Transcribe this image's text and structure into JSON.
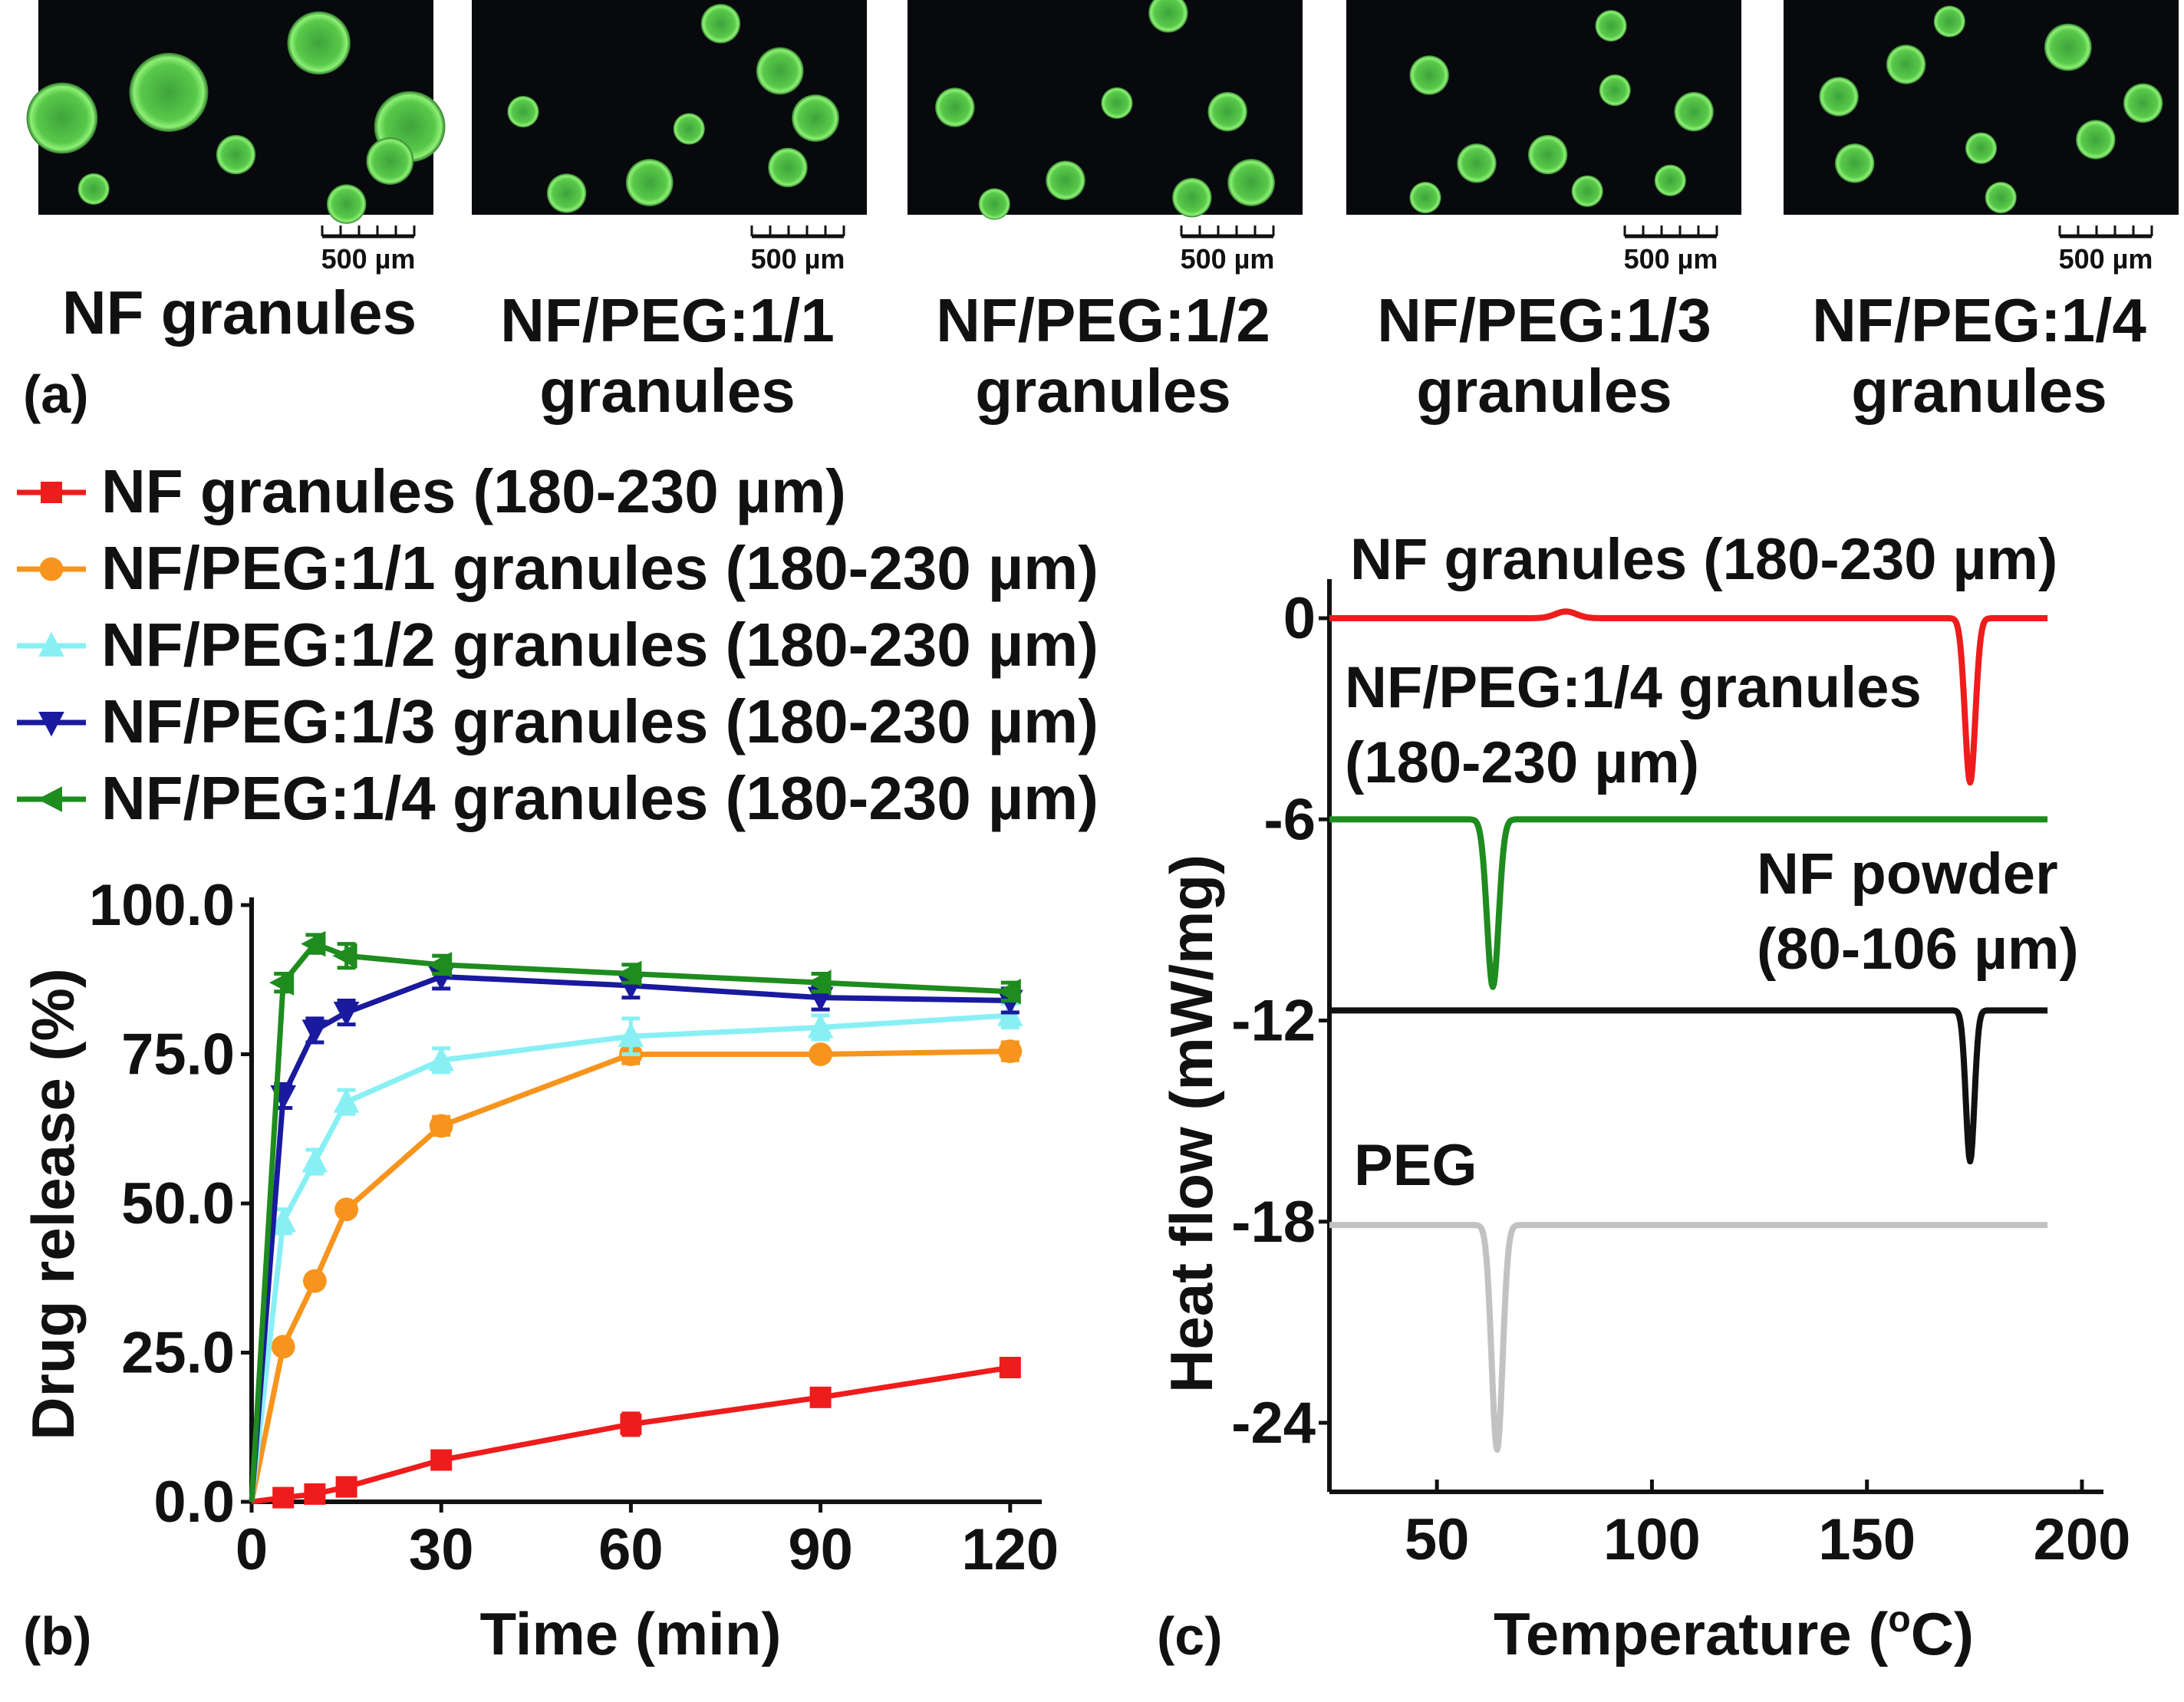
{
  "panel_a": {
    "panel_label": "(a)",
    "scale_bar": "500 µm",
    "images": [
      {
        "label_lines": [
          "NF granules"
        ],
        "blobs": [
          [
            0.06,
            0.55,
            0.09
          ],
          [
            0.33,
            0.43,
            0.1
          ],
          [
            0.71,
            0.2,
            0.08
          ],
          [
            0.94,
            0.59,
            0.09
          ],
          [
            0.89,
            0.75,
            0.06
          ],
          [
            0.14,
            0.88,
            0.04
          ],
          [
            0.5,
            0.72,
            0.05
          ],
          [
            0.78,
            0.95,
            0.05
          ]
        ]
      },
      {
        "label_lines": [
          "NF/PEG:1/1",
          "granules"
        ],
        "blobs": [
          [
            0.63,
            0.11,
            0.05
          ],
          [
            0.78,
            0.33,
            0.06
          ],
          [
            0.87,
            0.55,
            0.06
          ],
          [
            0.8,
            0.78,
            0.05
          ],
          [
            0.45,
            0.85,
            0.06
          ],
          [
            0.55,
            0.6,
            0.04
          ],
          [
            0.13,
            0.52,
            0.04
          ],
          [
            0.24,
            0.9,
            0.05
          ]
        ]
      },
      {
        "label_lines": [
          "NF/PEG:1/2",
          "granules"
        ],
        "blobs": [
          [
            0.66,
            0.06,
            0.05
          ],
          [
            0.12,
            0.5,
            0.05
          ],
          [
            0.53,
            0.48,
            0.04
          ],
          [
            0.81,
            0.52,
            0.05
          ],
          [
            0.87,
            0.85,
            0.06
          ],
          [
            0.4,
            0.84,
            0.05
          ],
          [
            0.72,
            0.92,
            0.05
          ],
          [
            0.22,
            0.95,
            0.04
          ]
        ]
      },
      {
        "label_lines": [
          "NF/PEG:1/3",
          "granules"
        ],
        "blobs": [
          [
            0.21,
            0.35,
            0.05
          ],
          [
            0.68,
            0.42,
            0.04
          ],
          [
            0.88,
            0.52,
            0.05
          ],
          [
            0.51,
            0.72,
            0.05
          ],
          [
            0.82,
            0.84,
            0.04
          ],
          [
            0.33,
            0.76,
            0.05
          ],
          [
            0.67,
            0.12,
            0.04
          ],
          [
            0.2,
            0.92,
            0.04
          ],
          [
            0.61,
            0.89,
            0.04
          ]
        ]
      },
      {
        "label_lines": [
          "NF/PEG:1/4",
          "granules"
        ],
        "blobs": [
          [
            0.14,
            0.45,
            0.05
          ],
          [
            0.31,
            0.3,
            0.05
          ],
          [
            0.72,
            0.22,
            0.06
          ],
          [
            0.91,
            0.48,
            0.05
          ],
          [
            0.5,
            0.69,
            0.04
          ],
          [
            0.79,
            0.65,
            0.05
          ],
          [
            0.18,
            0.76,
            0.05
          ],
          [
            0.55,
            0.92,
            0.04
          ],
          [
            0.42,
            0.1,
            0.04
          ]
        ]
      }
    ]
  },
  "panel_b": {
    "panel_label": "(b)",
    "xlabel": "Time (min)",
    "ylabel": "Drug release (%)",
    "ytick_labels": [
      "0.0",
      "25.0",
      "50.0",
      "75.0",
      "100.0"
    ],
    "xtick_labels": [
      "0",
      "30",
      "60",
      "90",
      "120"
    ]
  },
  "panel_c": {
    "panel_label": "(c)",
    "xlabel": "Temperature (",
    "xlabel_sup": "o",
    "xlabel_end": "C)",
    "ylabel": "Heat flow (mW/mg)",
    "ytick_labels": [
      "0",
      "-6",
      "-12",
      "-18",
      "-24"
    ],
    "xtick_labels": [
      "50",
      "100",
      "150",
      "200"
    ],
    "trace_labels": [
      {
        "lines": [
          "NF granules (180-230 µm)"
        ]
      },
      {
        "lines": [
          "NF/PEG:1/4 granules",
          "(180-230 µm)"
        ]
      },
      {
        "lines": [
          "NF powder",
          "(80-106 µm)"
        ]
      },
      {
        "lines": [
          "PEG"
        ]
      }
    ]
  },
  "chart_data": [
    {
      "type": "line",
      "xlabel": "Time (min)",
      "ylabel": "Drug release (%)",
      "xlim": [
        0,
        125
      ],
      "ylim": [
        0,
        100
      ],
      "xticks": [
        0,
        30,
        60,
        90,
        120
      ],
      "yticks": [
        0,
        25,
        50,
        75,
        100
      ],
      "grid": false,
      "legend_position": "top-left",
      "error_bars": true,
      "series": [
        {
          "name": "NF granules (180-230 µm)",
          "color": "#ee1c1c",
          "marker": "square",
          "x": [
            0,
            5,
            10,
            15,
            30,
            60,
            90,
            120
          ],
          "y": [
            0,
            0.7,
            1.3,
            2.5,
            7.0,
            13.0,
            17.5,
            22.5
          ],
          "err": [
            0,
            0.5,
            0.5,
            0.7,
            1.0,
            1.8,
            1.2,
            1.4
          ]
        },
        {
          "name": "NF/PEG:1/1 granules (180-230 µm)",
          "color": "#f7941d",
          "marker": "circle",
          "x": [
            0,
            5,
            10,
            15,
            30,
            60,
            90,
            120
          ],
          "y": [
            0,
            26,
            37,
            49,
            63,
            75,
            75,
            75.5
          ],
          "err": [
            0,
            1.0,
            1.0,
            1.0,
            1.5,
            1.5,
            1.0,
            1.5
          ]
        },
        {
          "name": "NF/PEG:1/2 granules (180-230 µm)",
          "color": "#88f0f4",
          "marker": "triangle-up",
          "x": [
            0,
            5,
            10,
            15,
            30,
            60,
            90,
            120
          ],
          "y": [
            0,
            47,
            57,
            67,
            74,
            78,
            79.5,
            81.5
          ],
          "err": [
            0,
            2.0,
            2.0,
            2.0,
            2.0,
            3.0,
            2.0,
            2.0
          ]
        },
        {
          "name": "NF/PEG:1/3 granules (180-230 µm)",
          "color": "#1a1a9e",
          "marker": "triangle-down",
          "x": [
            0,
            5,
            10,
            15,
            30,
            60,
            90,
            120
          ],
          "y": [
            0,
            68,
            79,
            82,
            88,
            86.5,
            84.5,
            84
          ],
          "err": [
            0,
            2.0,
            2.0,
            2.0,
            2.0,
            2.0,
            2.0,
            2.0
          ]
        },
        {
          "name": "NF/PEG:1/4 granules (180-230 µm)",
          "color": "#1e8c1e",
          "marker": "triangle-left",
          "x": [
            0,
            5,
            10,
            15,
            30,
            60,
            90,
            120
          ],
          "y": [
            0,
            87,
            93.5,
            91.5,
            90,
            88.5,
            87,
            85.5
          ],
          "err": [
            0,
            1.5,
            1.5,
            2.0,
            1.5,
            1.5,
            1.5,
            1.5
          ]
        }
      ]
    },
    {
      "type": "line",
      "xlabel": "Temperature (oC)",
      "ylabel": "Heat flow (mW/mg)",
      "xlim": [
        25,
        205
      ],
      "ylim": [
        -27,
        1
      ],
      "xticks": [
        50,
        100,
        150,
        200
      ],
      "yticks": [
        0,
        -6,
        -12,
        -18,
        -24
      ],
      "grid": false,
      "series": [
        {
          "name": "NF granules (180-230 µm)",
          "color": "#ee1c1c",
          "baseline": 0,
          "peak_x": 174,
          "depth": 4.9,
          "width": 1.7,
          "x": [
            25,
            80,
            192
          ],
          "y": [
            0,
            0.2,
            0
          ]
        },
        {
          "name": "NF/PEG:1/4 granules (180-230 µm)",
          "color": "#1e8c1e",
          "baseline": -6,
          "peak_x": 63,
          "depth": 5.0,
          "width": 1.9,
          "x": [
            25,
            192
          ],
          "y": [
            -6,
            -6
          ]
        },
        {
          "name": "NF powder (80-106 µm)",
          "color": "#111111",
          "baseline": -11.7,
          "peak_x": 174,
          "depth": 4.5,
          "width": 1.4,
          "x": [
            25,
            192
          ],
          "y": [
            -11.7,
            -11.7
          ]
        },
        {
          "name": "PEG",
          "color": "#c2c2c2",
          "baseline": -18.1,
          "peak_x": 64,
          "depth": 6.7,
          "width": 1.8,
          "x": [
            25,
            192
          ],
          "y": [
            -18.1,
            -18.1
          ]
        }
      ]
    }
  ]
}
